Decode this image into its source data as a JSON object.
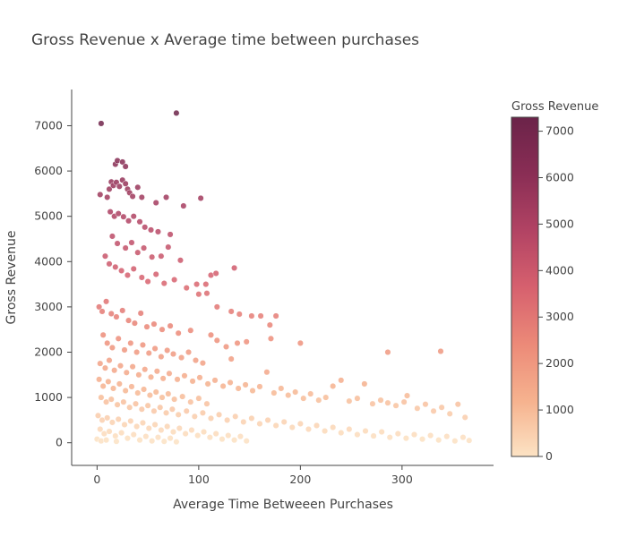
{
  "chart_data": {
    "type": "scatter",
    "title": "Gross Revenue x Average time between purchases",
    "xlabel": "Average Time Betweeen Purchases",
    "ylabel": "Gross Revenue",
    "xlim": [
      -25,
      390
    ],
    "ylim": [
      -500,
      7800
    ],
    "x_ticks": [
      0,
      100,
      200,
      300
    ],
    "y_ticks": [
      0,
      1000,
      2000,
      3000,
      4000,
      5000,
      6000,
      7000
    ],
    "grid": false,
    "colorbar": {
      "title": "Gross Revenue",
      "min": 0,
      "max": 7300,
      "ticks": [
        0,
        1000,
        2000,
        3000,
        4000,
        5000,
        6000,
        7000
      ],
      "colors": [
        "#fce3c4",
        "#f6b38f",
        "#ec8a78",
        "#d6606e",
        "#b34464",
        "#8a2e55",
        "#6b2349"
      ]
    },
    "marker_color_by": "Gross Revenue",
    "series": [
      {
        "points": [
          [
            4,
            7050
          ],
          [
            78,
            7280
          ],
          [
            18,
            6150
          ],
          [
            20,
            6230
          ],
          [
            25,
            6200
          ],
          [
            28,
            6100
          ],
          [
            3,
            5480
          ],
          [
            12,
            5600
          ],
          [
            14,
            5760
          ],
          [
            16,
            5680
          ],
          [
            19,
            5750
          ],
          [
            22,
            5660
          ],
          [
            25,
            5800
          ],
          [
            28,
            5720
          ],
          [
            30,
            5600
          ],
          [
            32,
            5520
          ],
          [
            35,
            5440
          ],
          [
            40,
            5640
          ],
          [
            44,
            5420
          ],
          [
            58,
            5300
          ],
          [
            68,
            5420
          ],
          [
            85,
            5230
          ],
          [
            102,
            5400
          ],
          [
            10,
            5420
          ],
          [
            13,
            5100
          ],
          [
            17,
            5000
          ],
          [
            21,
            5060
          ],
          [
            26,
            4990
          ],
          [
            31,
            4900
          ],
          [
            36,
            5000
          ],
          [
            42,
            4880
          ],
          [
            47,
            4760
          ],
          [
            53,
            4700
          ],
          [
            60,
            4660
          ],
          [
            72,
            4600
          ],
          [
            15,
            4560
          ],
          [
            20,
            4400
          ],
          [
            28,
            4300
          ],
          [
            34,
            4420
          ],
          [
            40,
            4200
          ],
          [
            46,
            4300
          ],
          [
            54,
            4100
          ],
          [
            63,
            4120
          ],
          [
            70,
            4320
          ],
          [
            82,
            4030
          ],
          [
            8,
            4120
          ],
          [
            12,
            3950
          ],
          [
            18,
            3880
          ],
          [
            24,
            3800
          ],
          [
            30,
            3700
          ],
          [
            36,
            3840
          ],
          [
            44,
            3650
          ],
          [
            50,
            3560
          ],
          [
            58,
            3720
          ],
          [
            66,
            3520
          ],
          [
            76,
            3600
          ],
          [
            88,
            3420
          ],
          [
            98,
            3500
          ],
          [
            107,
            3500
          ],
          [
            112,
            3700
          ],
          [
            117,
            3740
          ],
          [
            135,
            3860
          ],
          [
            100,
            3280
          ],
          [
            108,
            3300
          ],
          [
            118,
            3000
          ],
          [
            132,
            2900
          ],
          [
            140,
            2840
          ],
          [
            152,
            2800
          ],
          [
            161,
            2800
          ],
          [
            176,
            2800
          ],
          [
            170,
            2600
          ],
          [
            171,
            2300
          ],
          [
            200,
            2200
          ],
          [
            2,
            3000
          ],
          [
            5,
            2900
          ],
          [
            9,
            3120
          ],
          [
            14,
            2850
          ],
          [
            19,
            2780
          ],
          [
            25,
            2920
          ],
          [
            31,
            2700
          ],
          [
            37,
            2640
          ],
          [
            43,
            2860
          ],
          [
            49,
            2560
          ],
          [
            56,
            2620
          ],
          [
            64,
            2500
          ],
          [
            72,
            2580
          ],
          [
            80,
            2420
          ],
          [
            92,
            2480
          ],
          [
            112,
            2380
          ],
          [
            118,
            2260
          ],
          [
            138,
            2200
          ],
          [
            147,
            2230
          ],
          [
            127,
            2120
          ],
          [
            132,
            1850
          ],
          [
            286,
            2000
          ],
          [
            338,
            2020
          ],
          [
            6,
            2380
          ],
          [
            10,
            2200
          ],
          [
            15,
            2100
          ],
          [
            21,
            2300
          ],
          [
            27,
            2050
          ],
          [
            33,
            2200
          ],
          [
            39,
            2000
          ],
          [
            45,
            2160
          ],
          [
            51,
            1980
          ],
          [
            57,
            2080
          ],
          [
            63,
            1900
          ],
          [
            69,
            2040
          ],
          [
            75,
            1960
          ],
          [
            83,
            1880
          ],
          [
            90,
            2000
          ],
          [
            97,
            1820
          ],
          [
            104,
            1760
          ],
          [
            3,
            1750
          ],
          [
            8,
            1650
          ],
          [
            12,
            1820
          ],
          [
            17,
            1600
          ],
          [
            23,
            1700
          ],
          [
            29,
            1550
          ],
          [
            35,
            1680
          ],
          [
            41,
            1500
          ],
          [
            47,
            1620
          ],
          [
            53,
            1450
          ],
          [
            59,
            1580
          ],
          [
            65,
            1420
          ],
          [
            71,
            1530
          ],
          [
            79,
            1400
          ],
          [
            86,
            1480
          ],
          [
            94,
            1360
          ],
          [
            101,
            1440
          ],
          [
            109,
            1300
          ],
          [
            116,
            1380
          ],
          [
            124,
            1250
          ],
          [
            131,
            1330
          ],
          [
            139,
            1200
          ],
          [
            146,
            1280
          ],
          [
            153,
            1150
          ],
          [
            160,
            1240
          ],
          [
            167,
            1560
          ],
          [
            174,
            1100
          ],
          [
            181,
            1200
          ],
          [
            188,
            1050
          ],
          [
            195,
            1120
          ],
          [
            203,
            980
          ],
          [
            210,
            1080
          ],
          [
            218,
            940
          ],
          [
            225,
            1000
          ],
          [
            232,
            1250
          ],
          [
            240,
            1380
          ],
          [
            248,
            920
          ],
          [
            256,
            980
          ],
          [
            263,
            1300
          ],
          [
            271,
            860
          ],
          [
            279,
            940
          ],
          [
            286,
            880
          ],
          [
            294,
            820
          ],
          [
            302,
            900
          ],
          [
            305,
            1040
          ],
          [
            315,
            760
          ],
          [
            323,
            850
          ],
          [
            331,
            700
          ],
          [
            339,
            780
          ],
          [
            347,
            640
          ],
          [
            355,
            850
          ],
          [
            362,
            560
          ],
          [
            2,
            1400
          ],
          [
            6,
            1250
          ],
          [
            11,
            1350
          ],
          [
            16,
            1200
          ],
          [
            22,
            1300
          ],
          [
            28,
            1150
          ],
          [
            34,
            1240
          ],
          [
            40,
            1100
          ],
          [
            46,
            1180
          ],
          [
            52,
            1050
          ],
          [
            58,
            1120
          ],
          [
            64,
            1000
          ],
          [
            70,
            1080
          ],
          [
            76,
            960
          ],
          [
            84,
            1020
          ],
          [
            92,
            900
          ],
          [
            100,
            980
          ],
          [
            108,
            860
          ],
          [
            4,
            1000
          ],
          [
            9,
            900
          ],
          [
            14,
            960
          ],
          [
            20,
            840
          ],
          [
            26,
            900
          ],
          [
            32,
            780
          ],
          [
            38,
            860
          ],
          [
            44,
            740
          ],
          [
            50,
            820
          ],
          [
            56,
            700
          ],
          [
            62,
            780
          ],
          [
            68,
            660
          ],
          [
            74,
            740
          ],
          [
            80,
            620
          ],
          [
            88,
            700
          ],
          [
            96,
            580
          ],
          [
            104,
            660
          ],
          [
            112,
            540
          ],
          [
            120,
            620
          ],
          [
            128,
            500
          ],
          [
            136,
            580
          ],
          [
            144,
            460
          ],
          [
            152,
            540
          ],
          [
            160,
            420
          ],
          [
            168,
            500
          ],
          [
            176,
            380
          ],
          [
            184,
            460
          ],
          [
            192,
            340
          ],
          [
            200,
            420
          ],
          [
            208,
            300
          ],
          [
            216,
            380
          ],
          [
            224,
            260
          ],
          [
            232,
            340
          ],
          [
            240,
            220
          ],
          [
            248,
            300
          ],
          [
            256,
            180
          ],
          [
            264,
            260
          ],
          [
            272,
            150
          ],
          [
            280,
            240
          ],
          [
            288,
            120
          ],
          [
            296,
            200
          ],
          [
            304,
            100
          ],
          [
            312,
            180
          ],
          [
            320,
            80
          ],
          [
            328,
            160
          ],
          [
            336,
            60
          ],
          [
            344,
            140
          ],
          [
            352,
            40
          ],
          [
            360,
            120
          ],
          [
            366,
            50
          ],
          [
            1,
            600
          ],
          [
            5,
            500
          ],
          [
            10,
            550
          ],
          [
            15,
            450
          ],
          [
            21,
            520
          ],
          [
            27,
            400
          ],
          [
            33,
            480
          ],
          [
            39,
            360
          ],
          [
            45,
            440
          ],
          [
            51,
            320
          ],
          [
            57,
            400
          ],
          [
            63,
            280
          ],
          [
            69,
            360
          ],
          [
            75,
            240
          ],
          [
            81,
            320
          ],
          [
            87,
            200
          ],
          [
            93,
            280
          ],
          [
            99,
            160
          ],
          [
            105,
            240
          ],
          [
            111,
            120
          ],
          [
            117,
            200
          ],
          [
            123,
            80
          ],
          [
            129,
            160
          ],
          [
            135,
            60
          ],
          [
            141,
            140
          ],
          [
            147,
            40
          ],
          [
            3,
            300
          ],
          [
            7,
            200
          ],
          [
            12,
            250
          ],
          [
            18,
            150
          ],
          [
            24,
            220
          ],
          [
            30,
            100
          ],
          [
            36,
            180
          ],
          [
            42,
            60
          ],
          [
            48,
            140
          ],
          [
            54,
            40
          ],
          [
            60,
            120
          ],
          [
            66,
            30
          ],
          [
            72,
            100
          ],
          [
            78,
            20
          ],
          [
            0,
            80
          ],
          [
            4,
            40
          ],
          [
            9,
            60
          ],
          [
            19,
            30
          ]
        ]
      }
    ]
  }
}
